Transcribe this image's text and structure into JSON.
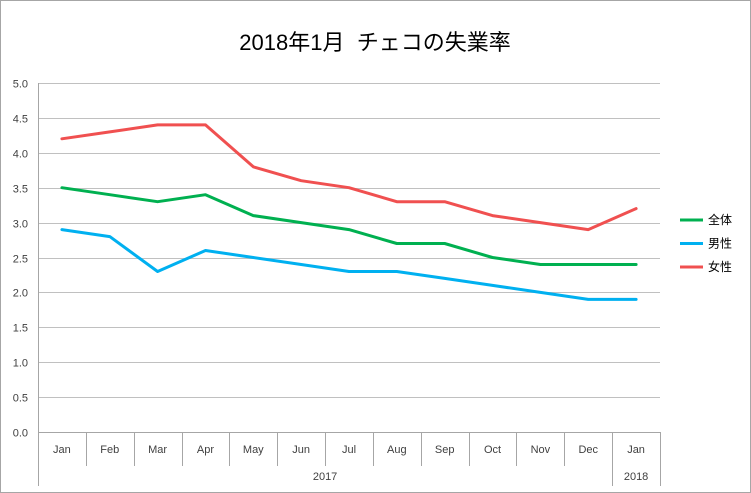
{
  "chart_data": {
    "type": "line",
    "title": "2018年1月  チェコの失業率",
    "categories": [
      "Jan",
      "Feb",
      "Mar",
      "Apr",
      "May",
      "Jun",
      "Jul",
      "Aug",
      "Sep",
      "Oct",
      "Nov",
      "Dec",
      "Jan"
    ],
    "category_groups": [
      {
        "label": "2017",
        "span": 12
      },
      {
        "label": "2018",
        "span": 1
      }
    ],
    "ylim": [
      0,
      5
    ],
    "yticks": [
      "0.0",
      "0.5",
      "1.0",
      "1.5",
      "2.0",
      "2.5",
      "3.0",
      "3.5",
      "4.0",
      "4.5",
      "5.0"
    ],
    "grid": true,
    "legend_position": "right",
    "series": [
      {
        "name": "全体",
        "color": "#00B050",
        "values": [
          3.5,
          3.4,
          3.3,
          3.4,
          3.1,
          3.0,
          2.9,
          2.7,
          2.7,
          2.5,
          2.4,
          2.4,
          2.4
        ]
      },
      {
        "name": "男性",
        "color": "#00B0F0",
        "values": [
          2.9,
          2.8,
          2.3,
          2.6,
          2.5,
          2.4,
          2.3,
          2.3,
          2.2,
          2.1,
          2.0,
          1.9,
          1.9
        ]
      },
      {
        "name": "女性",
        "color": "#F05050",
        "values": [
          4.2,
          4.3,
          4.4,
          4.4,
          3.8,
          3.6,
          3.5,
          3.3,
          3.3,
          3.1,
          3.0,
          2.9,
          3.2
        ]
      }
    ]
  }
}
